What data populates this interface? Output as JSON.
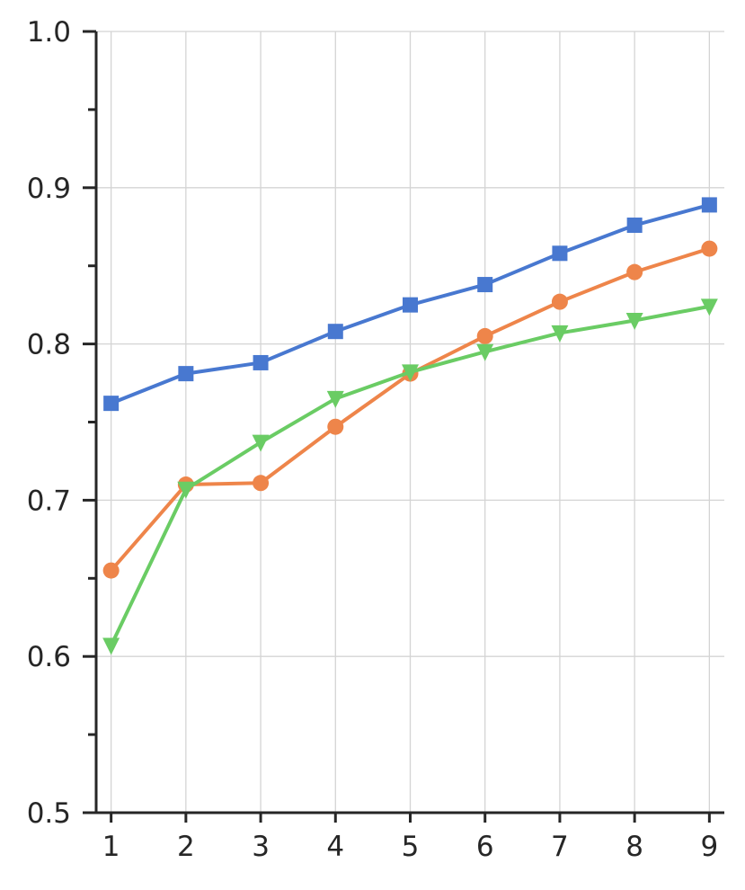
{
  "chart_data": {
    "type": "line",
    "title": "",
    "xlabel": "",
    "ylabel": "",
    "x": [
      1,
      2,
      3,
      4,
      5,
      6,
      7,
      8,
      9
    ],
    "xlim": [
      0.8,
      9.2
    ],
    "ylim": [
      0.5,
      1.0
    ],
    "x_ticks": [
      "1",
      "2",
      "3",
      "4",
      "5",
      "6",
      "7",
      "8",
      "9"
    ],
    "y_ticks": [
      "0.5",
      "0.6",
      "0.7",
      "0.8",
      "0.9",
      "1.0"
    ],
    "y_minor_ticks": [
      0.55,
      0.65,
      0.75,
      0.85,
      0.95
    ],
    "grid": true,
    "legend": "none",
    "series": [
      {
        "color": "#4878d0",
        "marker": "square",
        "values": [
          0.762,
          0.781,
          0.788,
          0.808,
          0.825,
          0.838,
          0.858,
          0.876,
          0.889
        ]
      },
      {
        "color": "#ee854a",
        "marker": "circle",
        "values": [
          0.655,
          0.71,
          0.711,
          0.747,
          0.781,
          0.805,
          0.827,
          0.846,
          0.861
        ]
      },
      {
        "color": "#6acc64",
        "marker": "triangle-down",
        "values": [
          0.607,
          0.707,
          0.737,
          0.765,
          0.782,
          0.795,
          0.807,
          0.815,
          0.824
        ]
      }
    ]
  }
}
